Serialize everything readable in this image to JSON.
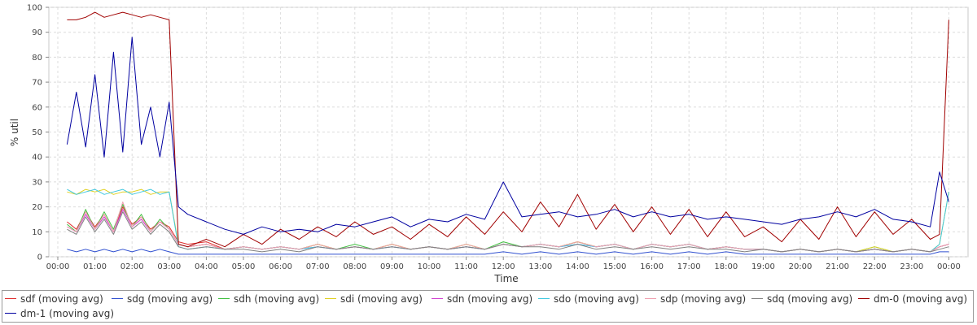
{
  "chart_data": {
    "type": "line",
    "title": "",
    "xlabel": "Time",
    "ylabel": "% util",
    "ylim": [
      0,
      100
    ],
    "y_ticks": [
      "0",
      "10",
      "20",
      "30",
      "40",
      "50",
      "60",
      "70",
      "80",
      "90",
      "100"
    ],
    "x_ticks": [
      "00:00",
      "01:00",
      "02:00",
      "03:00",
      "04:00",
      "05:00",
      "06:00",
      "07:00",
      "08:00",
      "09:00",
      "10:00",
      "11:00",
      "12:00",
      "13:00",
      "14:00",
      "15:00",
      "16:00",
      "17:00",
      "18:00",
      "19:00",
      "20:00",
      "21:00",
      "22:00",
      "23:00",
      "00:00"
    ],
    "x_hours": [
      0.25,
      0.5,
      0.75,
      1,
      1.25,
      1.5,
      1.75,
      2,
      2.25,
      2.5,
      2.75,
      3,
      3.25,
      3.5,
      4,
      4.5,
      5,
      5.5,
      6,
      6.5,
      7,
      7.5,
      8,
      8.5,
      9,
      9.5,
      10,
      10.5,
      11,
      11.5,
      12,
      12.5,
      13,
      13.5,
      14,
      14.5,
      15,
      15.5,
      16,
      16.5,
      17,
      17.5,
      18,
      18.5,
      19,
      19.5,
      20,
      20.5,
      21,
      21.5,
      22,
      22.5,
      23,
      23.5,
      23.75,
      24
    ],
    "grid": true,
    "legend_position": "bottom",
    "series": [
      {
        "name": "sdf (moving avg)",
        "color": "#e03030",
        "values": [
          14,
          11,
          18,
          12,
          17,
          10,
          20,
          13,
          16,
          11,
          14,
          12,
          6,
          5,
          6,
          3,
          4,
          3,
          4,
          3,
          5,
          3,
          4,
          3,
          5,
          3,
          4,
          3,
          4,
          3,
          5,
          4,
          5,
          4,
          6,
          4,
          5,
          3,
          5,
          4,
          5,
          3,
          4,
          3,
          3,
          2,
          3,
          2,
          3,
          2,
          3,
          2,
          3,
          2,
          4,
          5
        ]
      },
      {
        "name": "sdg (moving avg)",
        "color": "#3050d0",
        "values": [
          3,
          2,
          3,
          2,
          3,
          2,
          3,
          2,
          3,
          2,
          3,
          2,
          1,
          1,
          1,
          1,
          1,
          1,
          1,
          1,
          1,
          1,
          1,
          1,
          1,
          1,
          1,
          1,
          1,
          1,
          2,
          1,
          2,
          1,
          2,
          1,
          2,
          1,
          2,
          1,
          2,
          1,
          2,
          1,
          1,
          1,
          1,
          1,
          1,
          1,
          1,
          1,
          1,
          1,
          2,
          2
        ]
      },
      {
        "name": "sdh (moving avg)",
        "color": "#40c040",
        "values": [
          13,
          10,
          19,
          11,
          18,
          11,
          21,
          12,
          17,
          10,
          15,
          11,
          5,
          4,
          5,
          3,
          4,
          3,
          4,
          3,
          5,
          3,
          5,
          3,
          5,
          3,
          4,
          3,
          5,
          3,
          6,
          4,
          5,
          4,
          6,
          4,
          5,
          3,
          5,
          4,
          5,
          3,
          4,
          3,
          3,
          2,
          3,
          2,
          3,
          2,
          4,
          2,
          3,
          2,
          4,
          5
        ]
      },
      {
        "name": "sdi (moving avg)",
        "color": "#e0d020",
        "values": [
          26,
          25,
          27,
          26,
          27,
          25,
          26,
          26,
          27,
          25,
          26,
          26,
          5,
          4,
          5,
          3,
          4,
          3,
          4,
          3,
          5,
          3,
          4,
          3,
          5,
          3,
          4,
          3,
          5,
          3,
          5,
          4,
          5,
          4,
          6,
          4,
          5,
          3,
          5,
          4,
          5,
          3,
          4,
          3,
          3,
          2,
          3,
          2,
          3,
          2,
          4,
          2,
          3,
          2,
          5,
          26
        ]
      },
      {
        "name": "sdn (moving avg)",
        "color": "#d040d0",
        "values": [
          12,
          10,
          17,
          11,
          16,
          10,
          19,
          12,
          15,
          10,
          14,
          11,
          5,
          4,
          5,
          3,
          4,
          3,
          4,
          3,
          4,
          3,
          4,
          3,
          4,
          3,
          4,
          3,
          4,
          3,
          5,
          4,
          5,
          4,
          5,
          4,
          5,
          3,
          5,
          4,
          5,
          3,
          4,
          3,
          3,
          2,
          3,
          2,
          3,
          2,
          3,
          2,
          3,
          2,
          4,
          5
        ]
      },
      {
        "name": "sdo (moving avg)",
        "color": "#40c8e0",
        "values": [
          27,
          25,
          26,
          27,
          25,
          26,
          27,
          25,
          26,
          27,
          25,
          26,
          4,
          3,
          4,
          3,
          4,
          3,
          4,
          3,
          4,
          3,
          4,
          3,
          4,
          3,
          4,
          3,
          4,
          3,
          5,
          4,
          5,
          4,
          5,
          4,
          5,
          3,
          5,
          4,
          5,
          3,
          4,
          3,
          3,
          2,
          3,
          2,
          3,
          2,
          3,
          2,
          3,
          2,
          5,
          26
        ]
      },
      {
        "name": "sdp (moving avg)",
        "color": "#f0a0b0",
        "values": [
          12,
          10,
          18,
          11,
          17,
          10,
          22,
          12,
          16,
          10,
          14,
          11,
          5,
          4,
          5,
          3,
          4,
          3,
          4,
          3,
          5,
          3,
          4,
          3,
          5,
          3,
          4,
          3,
          5,
          3,
          5,
          4,
          5,
          4,
          6,
          4,
          5,
          3,
          5,
          4,
          5,
          3,
          4,
          3,
          3,
          2,
          3,
          2,
          3,
          2,
          3,
          2,
          3,
          2,
          4,
          5
        ]
      },
      {
        "name": "sdq (moving avg)",
        "color": "#808080",
        "values": [
          11,
          9,
          16,
          10,
          15,
          9,
          18,
          11,
          14,
          9,
          13,
          10,
          4,
          3,
          4,
          3,
          3,
          2,
          3,
          2,
          4,
          3,
          4,
          3,
          4,
          3,
          4,
          3,
          4,
          3,
          5,
          4,
          4,
          3,
          5,
          3,
          4,
          3,
          4,
          3,
          4,
          3,
          3,
          2,
          3,
          2,
          3,
          2,
          3,
          2,
          3,
          2,
          3,
          2,
          3,
          4
        ]
      },
      {
        "name": "dm-0 (moving avg)",
        "color": "#a00000",
        "values": [
          95,
          95,
          96,
          98,
          96,
          97,
          98,
          97,
          96,
          97,
          96,
          95,
          5,
          4,
          7,
          4,
          9,
          5,
          11,
          7,
          12,
          8,
          14,
          9,
          12,
          7,
          13,
          8,
          16,
          9,
          18,
          10,
          22,
          12,
          25,
          11,
          21,
          10,
          20,
          9,
          19,
          8,
          18,
          8,
          12,
          6,
          15,
          7,
          20,
          8,
          18,
          9,
          15,
          7,
          9,
          95
        ]
      },
      {
        "name": "dm-1 (moving avg)",
        "color": "#0000a0",
        "values": [
          45,
          66,
          44,
          73,
          40,
          82,
          42,
          88,
          45,
          60,
          40,
          62,
          20,
          17,
          14,
          11,
          9,
          12,
          10,
          11,
          10,
          13,
          12,
          14,
          16,
          12,
          15,
          14,
          17,
          15,
          30,
          16,
          17,
          18,
          16,
          17,
          19,
          16,
          18,
          16,
          17,
          15,
          16,
          15,
          14,
          13,
          15,
          16,
          18,
          16,
          19,
          15,
          14,
          12,
          34,
          22
        ]
      }
    ]
  }
}
